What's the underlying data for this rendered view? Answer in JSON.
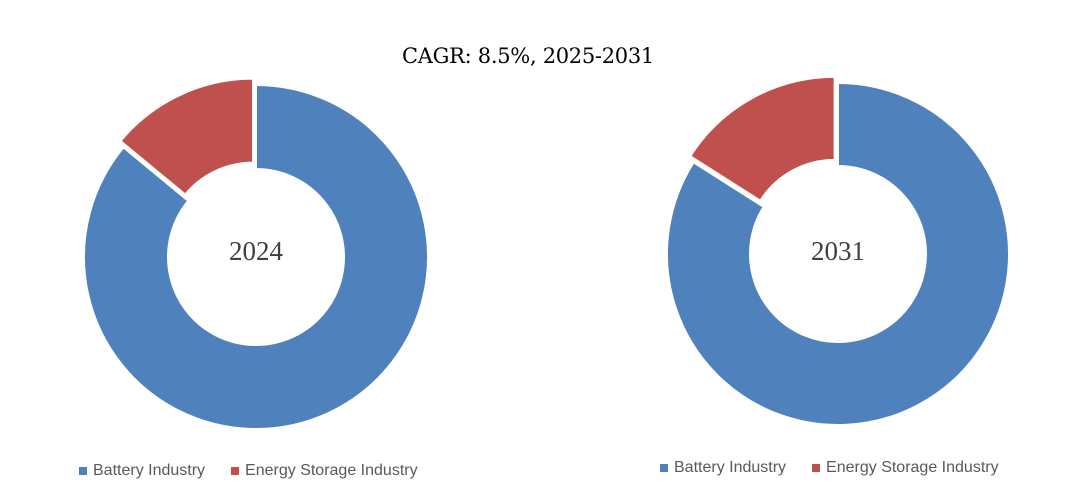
{
  "title": "CAGR:   8.5%, 2025-2031",
  "colors": {
    "battery": "#4F81BD",
    "energy_storage": "#C0504D"
  },
  "chart_data": [
    {
      "type": "pie",
      "variant": "donut",
      "center_label": "2024",
      "categories": [
        "Battery Industry",
        "Energy Storage Industry"
      ],
      "values": [
        86,
        14
      ]
    },
    {
      "type": "pie",
      "variant": "donut",
      "center_label": "2031",
      "categories": [
        "Battery Industry",
        "Energy Storage Industry"
      ],
      "values": [
        84,
        16
      ]
    }
  ],
  "legends": [
    {
      "items": [
        {
          "label": "Battery Industry"
        },
        {
          "label": "Energy Storage Industry"
        }
      ]
    },
    {
      "items": [
        {
          "label": "Battery Industry"
        },
        {
          "label": "Energy Storage Industry"
        }
      ]
    }
  ]
}
